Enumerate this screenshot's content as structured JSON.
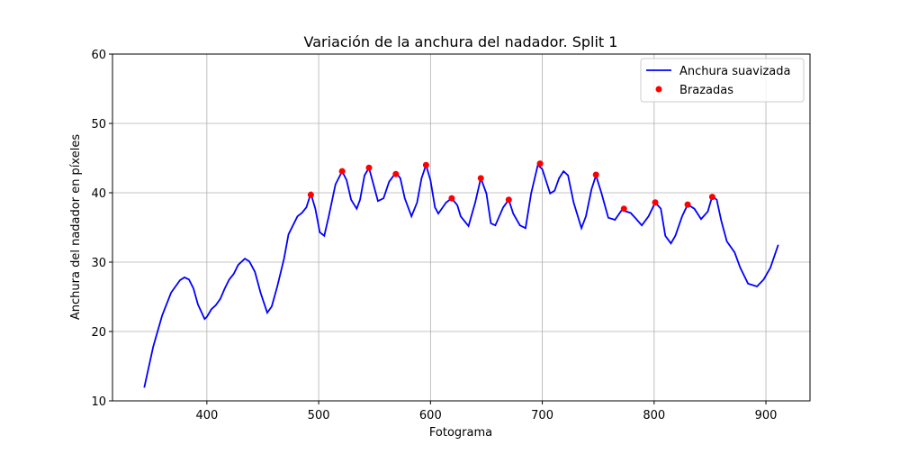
{
  "chart_data": {
    "type": "line",
    "title": "Variación de la anchura del nadador. Split 1",
    "x_label": "Fotograma",
    "y_label": "Anchura del nadador en píxeles",
    "xlim": [
      315.6,
      939.4
    ],
    "ylim": [
      10,
      60
    ],
    "xticks": [
      400,
      500,
      600,
      700,
      800,
      900
    ],
    "yticks": [
      10,
      20,
      30,
      40,
      50,
      60
    ],
    "grid": true,
    "legend": "upper right",
    "series": [
      {
        "name": "Anchura suavizada",
        "type": "line",
        "color": "#0000ff",
        "x": [
          344,
          352,
          360,
          368,
          376,
          380,
          384,
          388,
          392,
          398,
          400,
          404,
          408,
          412,
          416,
          420,
          424,
          428,
          434,
          438,
          443,
          448,
          454,
          458,
          463,
          469,
          473,
          477,
          481,
          485,
          489,
          493,
          497,
          501,
          505,
          509,
          515,
          521,
          525,
          529,
          534,
          537,
          541,
          545,
          549,
          553,
          558,
          563,
          569,
          573,
          577,
          583,
          588,
          592,
          596,
          600,
          604,
          607,
          614,
          619,
          624,
          627,
          634,
          640,
          645,
          650,
          654,
          658,
          665,
          670,
          674,
          680,
          685,
          690,
          696,
          700,
          707,
          711,
          715,
          719,
          723,
          728,
          735,
          739,
          744,
          748,
          753,
          759,
          765,
          771,
          779,
          783,
          789,
          795,
          801,
          806,
          810,
          815,
          819,
          825,
          830,
          836,
          842,
          848,
          852,
          856,
          860,
          865,
          872,
          877,
          884,
          892,
          898,
          904,
          911
        ],
        "values": [
          11.9,
          17.8,
          22.3,
          25.6,
          27.4,
          27.8,
          27.5,
          26.2,
          23.9,
          21.8,
          22.1,
          23.2,
          23.8,
          24.7,
          26.2,
          27.5,
          28.3,
          29.6,
          30.5,
          30.1,
          28.6,
          25.6,
          22.7,
          23.6,
          26.5,
          30.5,
          34.0,
          35.3,
          36.6,
          37.1,
          37.9,
          39.9,
          37.7,
          34.3,
          33.8,
          36.6,
          41.2,
          43.1,
          41.8,
          39.0,
          37.7,
          39.0,
          42.5,
          43.6,
          41.2,
          38.8,
          39.2,
          41.6,
          42.9,
          42.1,
          39.2,
          36.6,
          38.6,
          42.1,
          44.0,
          41.8,
          37.9,
          37.0,
          38.6,
          39.2,
          38.2,
          36.6,
          35.2,
          38.6,
          42.1,
          39.9,
          35.6,
          35.3,
          37.9,
          39.0,
          37.0,
          35.3,
          34.9,
          39.9,
          44.0,
          43.4,
          39.9,
          40.3,
          42.1,
          43.1,
          42.5,
          38.6,
          34.9,
          36.6,
          40.5,
          42.5,
          39.9,
          36.4,
          36.1,
          37.5,
          37.1,
          36.4,
          35.3,
          36.6,
          38.6,
          37.7,
          33.8,
          32.7,
          33.8,
          36.6,
          38.3,
          37.7,
          36.2,
          37.3,
          39.5,
          39.0,
          36.0,
          33.0,
          31.4,
          29.2,
          26.9,
          26.5,
          27.5,
          29.2,
          32.5
        ]
      },
      {
        "name": "Brazadas",
        "type": "scatter",
        "color": "#ff0000",
        "x": [
          493,
          521,
          545,
          569,
          596,
          619,
          645,
          670,
          698,
          748,
          773,
          801,
          830,
          852
        ],
        "values": [
          39.7,
          43.1,
          43.6,
          42.7,
          44.0,
          39.2,
          42.1,
          39.0,
          44.2,
          42.6,
          37.7,
          38.6,
          38.3,
          39.4
        ]
      }
    ]
  }
}
